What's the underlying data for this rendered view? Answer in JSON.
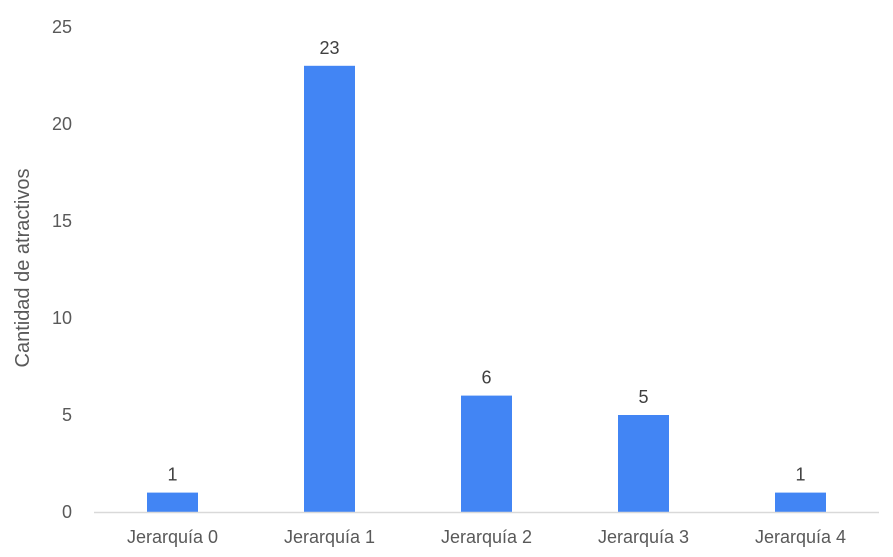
{
  "chart_data": {
    "type": "bar",
    "title": "",
    "xlabel": "",
    "ylabel": "Cantidad de atractivos",
    "categories": [
      "Jerarquía 0",
      "Jerarquía 1",
      "Jerarquía 2",
      "Jerarquía 3",
      "Jerarquía 4"
    ],
    "values": [
      1,
      23,
      6,
      5,
      1
    ],
    "data_labels": [
      "1",
      "23",
      "6",
      "5",
      "1"
    ],
    "ylim": [
      0,
      25
    ],
    "yticks": [
      0,
      5,
      10,
      15,
      20,
      25
    ],
    "ytick_labels": [
      "0",
      "5",
      "10",
      "15",
      "20",
      "25"
    ],
    "grid": false,
    "legend": "none",
    "bar_color": "#4285F4",
    "axis_color": "#D9D9D9"
  }
}
